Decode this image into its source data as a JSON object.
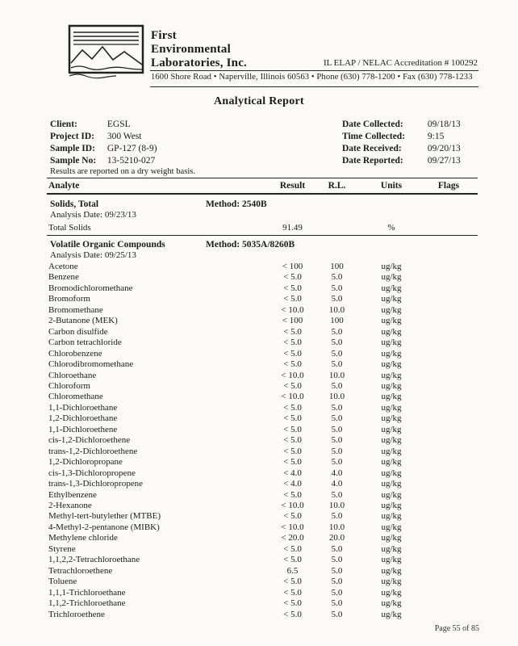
{
  "header": {
    "company_name_lines": [
      "First",
      "Environmental",
      "Laboratories, Inc."
    ],
    "accreditation": "IL ELAP / NELAC Accreditation # 100292",
    "address": "1600 Shore Road • Naperville, Illinois 60563 • Phone (630) 778-1200 • Fax (630) 778-1233"
  },
  "title": "Analytical Report",
  "info": {
    "left": [
      {
        "label": "Client:",
        "value": "EGSL"
      },
      {
        "label": "Project ID:",
        "value": "300 West"
      },
      {
        "label": "Sample ID:",
        "value": "GP-127  (8-9)"
      },
      {
        "label": "Sample No:",
        "value": "13-5210-027"
      }
    ],
    "right": [
      {
        "label": "Date Collected:",
        "value": "09/18/13"
      },
      {
        "label": "Time Collected:",
        "value": "9:15"
      },
      {
        "label": "Date Received:",
        "value": "09/20/13"
      },
      {
        "label": "Date Reported:",
        "value": "09/27/13"
      }
    ],
    "note": "Results are reported on a dry weight basis."
  },
  "table": {
    "columns": [
      "Analyte",
      "Result",
      "R.L.",
      "Units",
      "Flags"
    ],
    "sections": [
      {
        "name": "Solids, Total",
        "method": "Method:  2540B",
        "analysis_date": "Analysis Date:   09/23/13",
        "rows": [
          {
            "analyte": "Total Solids",
            "result": "91.49",
            "rl": "",
            "units": "%",
            "flags": ""
          }
        ]
      },
      {
        "name": "Volatile Organic Compounds",
        "method": "Method:  5035A/8260B",
        "analysis_date": "Analysis Date:   09/25/13",
        "rows": [
          {
            "analyte": "Acetone",
            "result": "< 100",
            "rl": "100",
            "units": "ug/kg",
            "flags": ""
          },
          {
            "analyte": "Benzene",
            "result": "< 5.0",
            "rl": "5.0",
            "units": "ug/kg",
            "flags": ""
          },
          {
            "analyte": "Bromodichloromethane",
            "result": "< 5.0",
            "rl": "5.0",
            "units": "ug/kg",
            "flags": ""
          },
          {
            "analyte": "Bromoform",
            "result": "< 5.0",
            "rl": "5.0",
            "units": "ug/kg",
            "flags": ""
          },
          {
            "analyte": "Bromomethane",
            "result": "< 10.0",
            "rl": "10.0",
            "units": "ug/kg",
            "flags": ""
          },
          {
            "analyte": "2-Butanone (MEK)",
            "result": "< 100",
            "rl": "100",
            "units": "ug/kg",
            "flags": ""
          },
          {
            "analyte": "Carbon disulfide",
            "result": "< 5.0",
            "rl": "5.0",
            "units": "ug/kg",
            "flags": ""
          },
          {
            "analyte": "Carbon tetrachloride",
            "result": "< 5.0",
            "rl": "5.0",
            "units": "ug/kg",
            "flags": ""
          },
          {
            "analyte": "Chlorobenzene",
            "result": "< 5.0",
            "rl": "5.0",
            "units": "ug/kg",
            "flags": ""
          },
          {
            "analyte": "Chlorodibromomethane",
            "result": "< 5.0",
            "rl": "5.0",
            "units": "ug/kg",
            "flags": ""
          },
          {
            "analyte": "Chloroethane",
            "result": "< 10.0",
            "rl": "10.0",
            "units": "ug/kg",
            "flags": ""
          },
          {
            "analyte": "Chloroform",
            "result": "< 5.0",
            "rl": "5.0",
            "units": "ug/kg",
            "flags": ""
          },
          {
            "analyte": "Chloromethane",
            "result": "< 10.0",
            "rl": "10.0",
            "units": "ug/kg",
            "flags": ""
          },
          {
            "analyte": "1,1-Dichloroethane",
            "result": "< 5.0",
            "rl": "5.0",
            "units": "ug/kg",
            "flags": ""
          },
          {
            "analyte": "1,2-Dichloroethane",
            "result": "< 5.0",
            "rl": "5.0",
            "units": "ug/kg",
            "flags": ""
          },
          {
            "analyte": "1,1-Dichloroethene",
            "result": "< 5.0",
            "rl": "5.0",
            "units": "ug/kg",
            "flags": ""
          },
          {
            "analyte": "cis-1,2-Dichloroethene",
            "result": "< 5.0",
            "rl": "5.0",
            "units": "ug/kg",
            "flags": ""
          },
          {
            "analyte": "trans-1,2-Dichloroethene",
            "result": "< 5.0",
            "rl": "5.0",
            "units": "ug/kg",
            "flags": ""
          },
          {
            "analyte": "1,2-Dichloropropane",
            "result": "< 5.0",
            "rl": "5.0",
            "units": "ug/kg",
            "flags": ""
          },
          {
            "analyte": "cis-1,3-Dichloropropene",
            "result": "< 4.0",
            "rl": "4.0",
            "units": "ug/kg",
            "flags": ""
          },
          {
            "analyte": "trans-1,3-Dichloropropene",
            "result": "< 4.0",
            "rl": "4.0",
            "units": "ug/kg",
            "flags": ""
          },
          {
            "analyte": "Ethylbenzene",
            "result": "< 5.0",
            "rl": "5.0",
            "units": "ug/kg",
            "flags": ""
          },
          {
            "analyte": "2-Hexanone",
            "result": "< 10.0",
            "rl": "10.0",
            "units": "ug/kg",
            "flags": ""
          },
          {
            "analyte": "Methyl-tert-butylether (MTBE)",
            "result": "< 5.0",
            "rl": "5.0",
            "units": "ug/kg",
            "flags": ""
          },
          {
            "analyte": "4-Methyl-2-pentanone (MIBK)",
            "result": "< 10.0",
            "rl": "10.0",
            "units": "ug/kg",
            "flags": ""
          },
          {
            "analyte": "Methylene chloride",
            "result": "< 20.0",
            "rl": "20.0",
            "units": "ug/kg",
            "flags": ""
          },
          {
            "analyte": "Styrene",
            "result": "< 5.0",
            "rl": "5.0",
            "units": "ug/kg",
            "flags": ""
          },
          {
            "analyte": "1,1,2,2-Tetrachloroethane",
            "result": "< 5.0",
            "rl": "5.0",
            "units": "ug/kg",
            "flags": ""
          },
          {
            "analyte": "Tetrachloroethene",
            "result": "6.5",
            "rl": "5.0",
            "units": "ug/kg",
            "flags": ""
          },
          {
            "analyte": "Toluene",
            "result": "< 5.0",
            "rl": "5.0",
            "units": "ug/kg",
            "flags": ""
          },
          {
            "analyte": "1,1,1-Trichloroethane",
            "result": "< 5.0",
            "rl": "5.0",
            "units": "ug/kg",
            "flags": ""
          },
          {
            "analyte": "1,1,2-Trichloroethane",
            "result": "< 5.0",
            "rl": "5.0",
            "units": "ug/kg",
            "flags": ""
          },
          {
            "analyte": "Trichloroethene",
            "result": "< 5.0",
            "rl": "5.0",
            "units": "ug/kg",
            "flags": ""
          }
        ]
      }
    ]
  },
  "footer": {
    "page": "Page 55 of 85"
  }
}
